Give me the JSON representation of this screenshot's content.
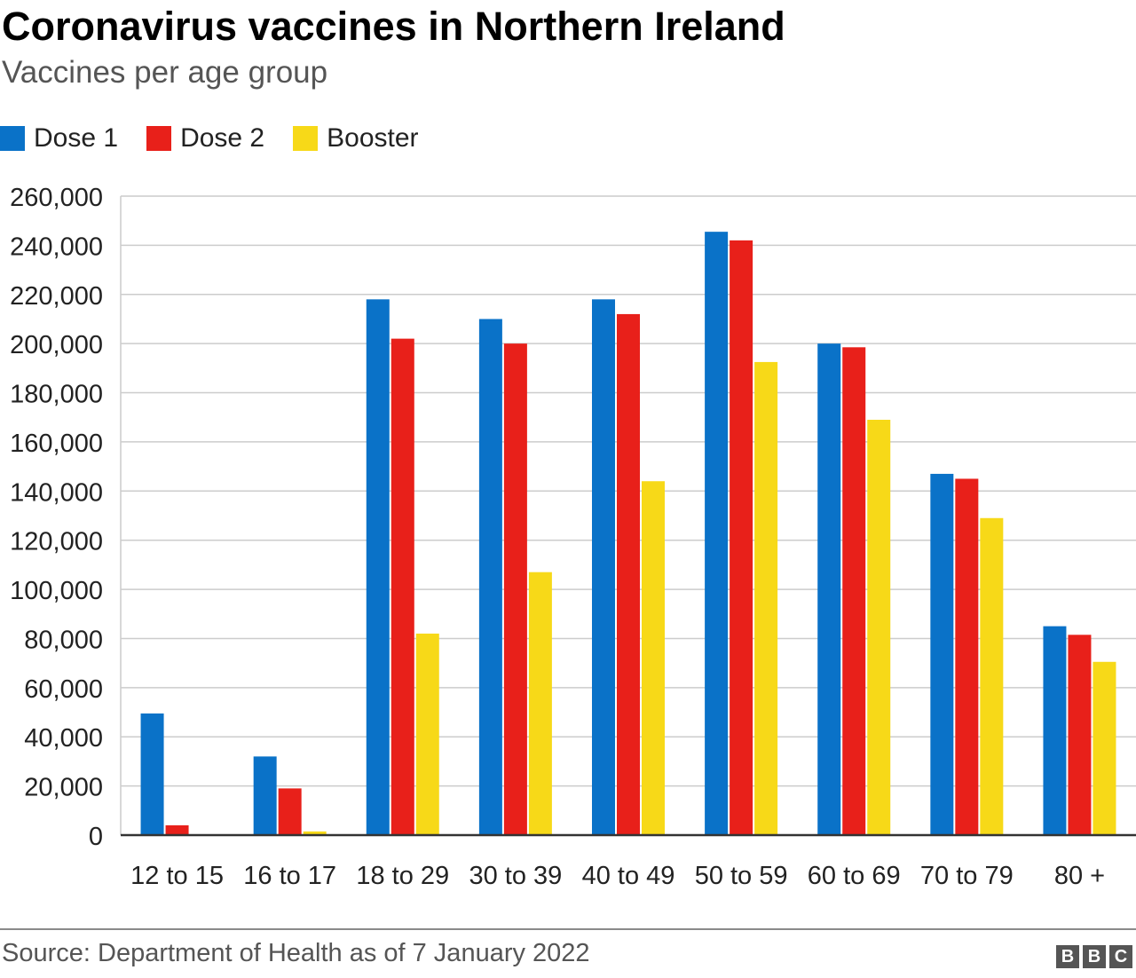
{
  "header": {
    "title": "Coronavirus vaccines in Northern Ireland",
    "subtitle": "Vaccines per age group"
  },
  "legend": [
    {
      "label": "Dose 1",
      "color": "#0a72c8"
    },
    {
      "label": "Dose 2",
      "color": "#e8201a"
    },
    {
      "label": "Booster",
      "color": "#f7d918"
    }
  ],
  "chart_data": {
    "type": "bar",
    "categories": [
      "12 to 15",
      "16 to 17",
      "18 to 29",
      "30 to 39",
      "40 to 49",
      "50 to 59",
      "60 to 69",
      "70 to 79",
      "80 +"
    ],
    "series": [
      {
        "name": "Dose 1",
        "color": "#0a72c8",
        "values": [
          49500,
          32000,
          218000,
          210000,
          218000,
          245500,
          200000,
          147000,
          85000
        ]
      },
      {
        "name": "Dose 2",
        "color": "#e8201a",
        "values": [
          4000,
          19000,
          202000,
          200000,
          212000,
          242000,
          198500,
          145000,
          81500
        ]
      },
      {
        "name": "Booster",
        "color": "#f7d918",
        "values": [
          0,
          1500,
          82000,
          107000,
          144000,
          192500,
          169000,
          129000,
          70500
        ]
      }
    ],
    "ylim": [
      0,
      260000
    ],
    "yticks": [
      0,
      20000,
      40000,
      60000,
      80000,
      100000,
      120000,
      140000,
      160000,
      180000,
      200000,
      220000,
      240000,
      260000
    ],
    "ytick_labels": [
      "0",
      "20,000",
      "40,000",
      "60,000",
      "80,000",
      "100,000",
      "120,000",
      "140,000",
      "160,000",
      "180,000",
      "200,000",
      "220,000",
      "240,000",
      "260,000"
    ],
    "grid": true,
    "legend_position": "top-left"
  },
  "footer": {
    "source": "Source: Department of Health as of 7 January 2022",
    "logo_letters": [
      "B",
      "B",
      "C"
    ]
  }
}
